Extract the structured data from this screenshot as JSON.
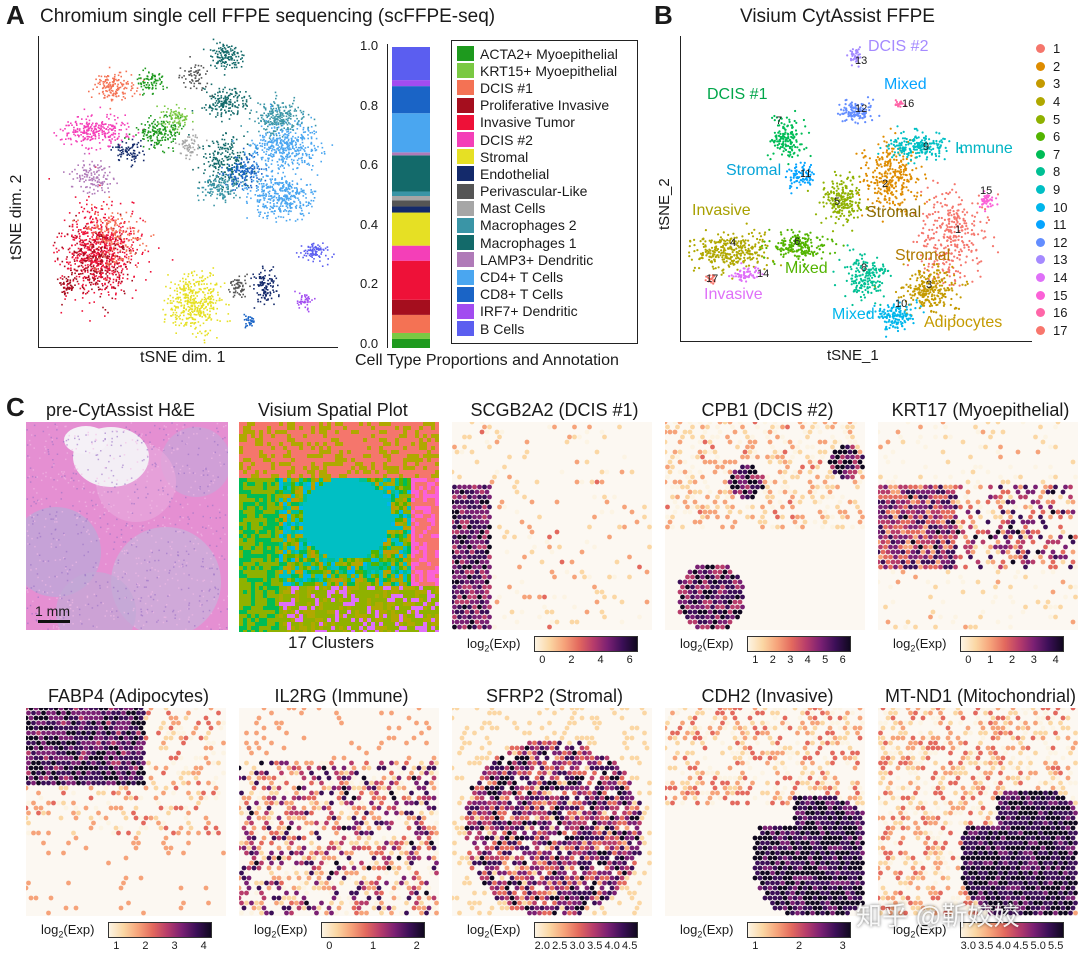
{
  "panel_a": {
    "letter": "A",
    "title": "Chromium single cell FFPE sequencing (scFFPE-seq)",
    "tsne_xlabel": "tSNE dim. 1",
    "tsne_ylabel": "tSNE dim. 2",
    "bar_xlabel": "Cell Type Proportions and Annotation",
    "bar_ticks": [
      "1.0",
      "0.8",
      "0.6",
      "0.4",
      "0.2",
      "0.0"
    ],
    "cell_types": [
      {
        "name": "ACTA2+ Myoepithelial",
        "color": "#1e9a1e"
      },
      {
        "name": "KRT15+ Myoepithelial",
        "color": "#7ac943"
      },
      {
        "name": "DCIS #1",
        "color": "#f47254"
      },
      {
        "name": "Proliferative Invasive",
        "color": "#a50e1e"
      },
      {
        "name": "Invasive Tumor",
        "color": "#ee1138"
      },
      {
        "name": "DCIS #2",
        "color": "#f43fb8"
      },
      {
        "name": "Stromal",
        "color": "#e6e024"
      },
      {
        "name": "Endothelial",
        "color": "#142a6b"
      },
      {
        "name": "Perivascular-Like",
        "color": "#555555"
      },
      {
        "name": "Mast Cells",
        "color": "#a6a6a6"
      },
      {
        "name": "Macrophages 2",
        "color": "#3a95a6"
      },
      {
        "name": "Macrophages 1",
        "color": "#136a6a"
      },
      {
        "name": "LAMP3+ Dendritic",
        "color": "#b07ab8"
      },
      {
        "name": "CD4+ T Cells",
        "color": "#4aa6f0"
      },
      {
        "name": "CD8+ T Cells",
        "color": "#1a64c6"
      },
      {
        "name": "IRF7+ Dendritic",
        "color": "#a24cf0"
      },
      {
        "name": "B Cells",
        "color": "#5b5ef0"
      }
    ]
  },
  "panel_b": {
    "letter": "B",
    "title": "Visium CytAssist FFPE",
    "xlabel": "tSNE_1",
    "ylabel": "tSNE_2",
    "clusters": [
      {
        "id": "1",
        "color": "#f5766c"
      },
      {
        "id": "2",
        "color": "#de8c00"
      },
      {
        "id": "3",
        "color": "#c49a00"
      },
      {
        "id": "4",
        "color": "#b0a800"
      },
      {
        "id": "5",
        "color": "#8fb100"
      },
      {
        "id": "6",
        "color": "#53b400"
      },
      {
        "id": "7",
        "color": "#00bc56"
      },
      {
        "id": "8",
        "color": "#00c094"
      },
      {
        "id": "9",
        "color": "#00bfc4"
      },
      {
        "id": "10",
        "color": "#00b6eb"
      },
      {
        "id": "11",
        "color": "#06a4ff"
      },
      {
        "id": "12",
        "color": "#638dff"
      },
      {
        "id": "13",
        "color": "#a58aff"
      },
      {
        "id": "14",
        "color": "#df70f8"
      },
      {
        "id": "15",
        "color": "#fb61d7"
      },
      {
        "id": "16",
        "color": "#ff66a8"
      },
      {
        "id": "17",
        "color": "#f8766d"
      }
    ],
    "annotations": {
      "dcis2": "DCIS #2",
      "mixed_top": "Mixed",
      "dcis1": "DCIS #1",
      "immune": "Immune",
      "stromal_left": "Stromal",
      "stromal_mid": "Stromal",
      "stromal_right": "Stromal",
      "invasive_top": "Invasive",
      "invasive_bottom": "Invasive",
      "mixed_mid": "Mixed",
      "mixed_bottom": "Mixed",
      "adipocytes": "Adipocytes"
    },
    "cluster_numbers": {
      "n13": "13",
      "n12": "12",
      "n16": "16",
      "n9": "9",
      "n11": "11",
      "n2": "2",
      "n15": "15",
      "n5": "5",
      "n1": "1",
      "n4": "4",
      "n6": "6",
      "n8": "8",
      "n14": "14",
      "n17": "17",
      "n10": "10",
      "n3": "3",
      "n7": "7"
    }
  },
  "panel_c": {
    "letter": "C",
    "colorbar_label": "log",
    "colorbar_sub": "2",
    "colorbar_suffix": "(Exp)",
    "he": {
      "title": "pre-CytAssist H&E",
      "scale": "1 mm"
    },
    "spatial": {
      "title": "Visium Spatial Plot",
      "caption": "17 Clusters"
    },
    "genes": [
      {
        "title": "SCGB2A2 (DCIS #1)",
        "ticks": [
          "0",
          "2",
          "4",
          "6"
        ]
      },
      {
        "title": "CPB1 (DCIS #2)",
        "ticks": [
          "1",
          "2",
          "3",
          "4",
          "5",
          "6"
        ]
      },
      {
        "title": "KRT17 (Myoepithelial)",
        "ticks": [
          "0",
          "1",
          "2",
          "3",
          "4"
        ]
      },
      {
        "title": "FABP4 (Adipocytes)",
        "ticks": [
          "1",
          "2",
          "3",
          "4"
        ]
      },
      {
        "title": "IL2RG (Immune)",
        "ticks": [
          "0",
          "1",
          "2"
        ]
      },
      {
        "title": "SFRP2 (Stromal)",
        "ticks": [
          "2.0",
          "2.5",
          "3.0",
          "3.5",
          "4.0",
          "4.5"
        ]
      },
      {
        "title": "CDH2 (Invasive)",
        "ticks": [
          "1",
          "2",
          "3"
        ]
      },
      {
        "title": "MT-ND1 (Mitochondrial)",
        "ticks": [
          "3.0",
          "3.5",
          "4.0",
          "4.5",
          "5.0",
          "5.5"
        ]
      }
    ]
  },
  "watermark": "知乎 @靳姣姣"
}
